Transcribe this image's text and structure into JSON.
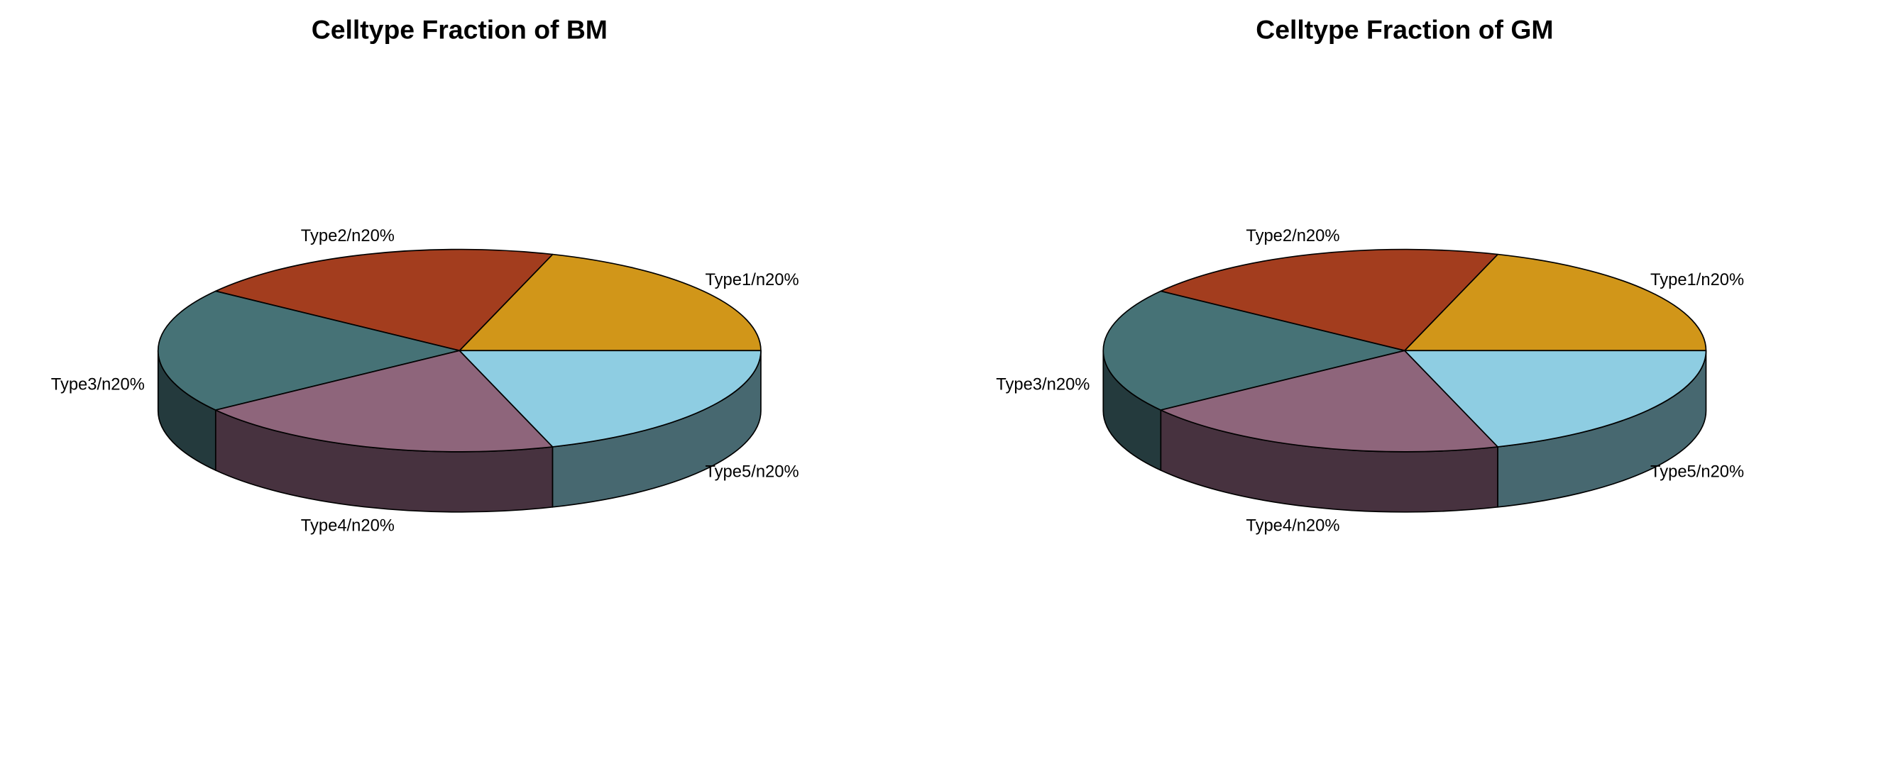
{
  "chart_data": [
    {
      "type": "pie",
      "style": "3d",
      "title": "Celltype Fraction of BM",
      "categories": [
        "Type1/n20%",
        "Type2/n20%",
        "Type3/n20%",
        "Type4/n20%",
        "Type5/n20%"
      ],
      "values": [
        20,
        20,
        20,
        20,
        20
      ],
      "colors": [
        "#D19619",
        "#A33D1E",
        "#467276",
        "#8E657B",
        "#8ECDE2"
      ],
      "side_colors": [
        "#6B4E10",
        "#52200F",
        "#243A3D",
        "#47323F",
        "#476870"
      ]
    },
    {
      "type": "pie",
      "style": "3d",
      "title": "Celltype Fraction of GM",
      "categories": [
        "Type1/n20%",
        "Type2/n20%",
        "Type3/n20%",
        "Type4/n20%",
        "Type5/n20%"
      ],
      "values": [
        20,
        20,
        20,
        20,
        20
      ],
      "colors": [
        "#D19619",
        "#A33D1E",
        "#467276",
        "#8E657B",
        "#8ECDE2"
      ],
      "side_colors": [
        "#6B4E10",
        "#52200F",
        "#243A3D",
        "#47323F",
        "#476870"
      ]
    }
  ]
}
